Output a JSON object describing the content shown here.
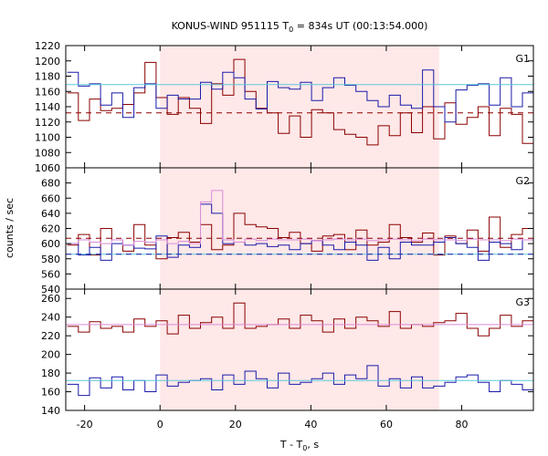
{
  "chart_data": {
    "type": "line",
    "title": {
      "prefix": "KONUS-WIND 951115 T",
      "sub": "0",
      "suffix": " = 834s UT (00:13:54.000)"
    },
    "xlabel": {
      "prefix": "T - T",
      "sub": "0",
      "suffix": ", s"
    },
    "ylabel": "counts / sec",
    "xlim": [
      -25,
      99
    ],
    "x_ticks": [
      -20,
      0,
      20,
      40,
      60,
      80
    ],
    "shaded_interval": [
      0,
      74
    ],
    "bin_start": -24.6,
    "bin_width": 2.944,
    "colors": {
      "shade": "#ffe8e8",
      "dark_red": "#8b0000",
      "dark_blue": "#1a1aaa",
      "cyan": "#5bc8d8",
      "pink": "#d98ad9",
      "axis": "#000000"
    },
    "panels": [
      {
        "label": "G1",
        "ylim": [
          1060,
          1220
        ],
        "y_ticks": [
          1060,
          1080,
          1100,
          1120,
          1140,
          1160,
          1180,
          1200,
          1220
        ],
        "series": [
          {
            "style": "red-step",
            "values": [
              1158,
              1122,
              1150,
              1135,
              1138,
              1143,
              1158,
              1198,
              1152,
              1130,
              1152,
              1138,
              1118,
              1170,
              1155,
              1202,
              1160,
              1138,
              1132,
              1105,
              1128,
              1100,
              1136,
              1132,
              1110,
              1104,
              1100,
              1090,
              1115,
              1102,
              1132,
              1106,
              1140,
              1098,
              1145,
              1117,
              1126,
              1140,
              1102,
              1138,
              1130,
              1092,
              1125,
              1178,
              1135,
              1124,
              1158,
              1095,
              1140,
              1103,
              1144,
              1105,
              1142
            ]
          },
          {
            "style": "blue-step",
            "values": [
              1185,
              1167,
              1170,
              1142,
              1158,
              1126,
              1165,
              1170,
              1138,
              1155,
              1150,
              1150,
              1172,
              1163,
              1185,
              1178,
              1150,
              1137,
              1173,
              1165,
              1163,
              1172,
              1148,
              1165,
              1178,
              1168,
              1160,
              1148,
              1140,
              1155,
              1142,
              1138,
              1188,
              1140,
              1120,
              1162,
              1168,
              1170,
              1142,
              1178,
              1140,
              1158,
              1140,
              1168,
              1130,
              1110,
              1156,
              1145,
              1162,
              1110,
              1150,
              1102,
              1140
            ]
          },
          {
            "style": "cyan-flat",
            "values": [
              1169
            ]
          },
          {
            "style": "red-dash",
            "values": [
              1132
            ]
          }
        ]
      },
      {
        "label": "G2",
        "ylim": [
          540,
          700
        ],
        "y_ticks": [
          540,
          560,
          580,
          600,
          620,
          640,
          660,
          680
        ],
        "series": [
          {
            "style": "red-step",
            "values": [
              598,
              612,
              585,
              620,
              605,
              590,
              625,
              598,
              580,
              608,
              615,
              602,
              625,
              592,
              598,
              640,
              625,
              622,
              620,
              608,
              615,
              600,
              590,
              610,
              612,
              592,
              618,
              598,
              602,
              625,
              608,
              602,
              614,
              585,
              610,
              600,
              618,
              590,
              635,
              595,
              612,
              620,
              598,
              608,
              585,
              598,
              625,
              600,
              595,
              585,
              615,
              605,
              620
            ]
          },
          {
            "style": "blue-step",
            "values": [
              600,
              585,
              595,
              578,
              600,
              598,
              594,
              593,
              610,
              582,
              598,
              595,
              652,
              640,
              600,
              602,
              598,
              600,
              596,
              598,
              592,
              600,
              604,
              598,
              592,
              602,
              598,
              578,
              595,
              580,
              602,
              598,
              598,
              602,
              608,
              600,
              595,
              578,
              602,
              600,
              592,
              605,
              598,
              600,
              598,
              595,
              588,
              600,
              585,
              592,
              585,
              588,
              592
            ]
          },
          {
            "style": "pink-step",
            "values": [
              600,
              605,
              602,
              600,
              605,
              598,
              603,
              602,
              605,
              600,
              603,
              600,
              655,
              670,
              605,
              602,
              606,
              604,
              606,
              605,
              605,
              606,
              604,
              605,
              606,
              605,
              606,
              604,
              605,
              606,
              605,
              604,
              606,
              605,
              605,
              604,
              606,
              605,
              605,
              604,
              606,
              605,
              605,
              604,
              606,
              605,
              605,
              604,
              606,
              605,
              605,
              604,
              605
            ]
          },
          {
            "style": "cyan-flat",
            "values": [
              586
            ]
          },
          {
            "style": "blue-dash",
            "values": [
              586
            ]
          },
          {
            "style": "red-dash",
            "values": [
              607
            ]
          }
        ]
      },
      {
        "label": "G3",
        "ylim": [
          140,
          270
        ],
        "y_ticks": [
          140,
          160,
          180,
          200,
          220,
          240,
          260
        ],
        "series": [
          {
            "style": "red-step",
            "values": [
              230,
              224,
              235,
              228,
              230,
              224,
              238,
              230,
              236,
              222,
              242,
              228,
              234,
              240,
              228,
              255,
              228,
              230,
              232,
              238,
              228,
              242,
              236,
              224,
              238,
              228,
              240,
              236,
              230,
              246,
              228,
              232,
              230,
              234,
              236,
              244,
              228,
              220,
              228,
              242,
              230,
              236,
              232,
              242,
              228,
              236,
              232,
              240,
              228,
              238,
              230,
              246,
              244
            ]
          },
          {
            "style": "blue-step",
            "values": [
              168,
              156,
              175,
              164,
              176,
              162,
              172,
              160,
              178,
              166,
              170,
              172,
              174,
              162,
              178,
              168,
              182,
              174,
              164,
              180,
              168,
              170,
              174,
              180,
              168,
              178,
              174,
              188,
              166,
              174,
              164,
              176,
              164,
              166,
              170,
              176,
              178,
              170,
              160,
              172,
              168,
              162,
              152,
              160,
              172,
              158,
              166,
              184,
              168,
              160,
              176,
              166,
              168
            ]
          },
          {
            "style": "cyan-flat",
            "values": [
              172
            ]
          },
          {
            "style": "pink-flat",
            "values": [
              232
            ]
          }
        ]
      }
    ]
  }
}
